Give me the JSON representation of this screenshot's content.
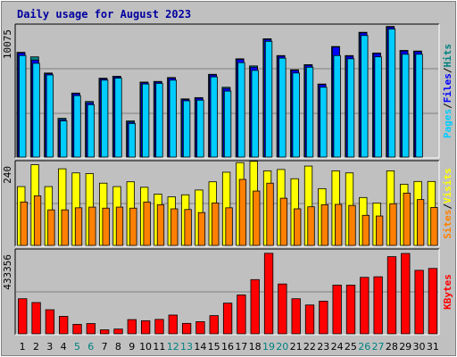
{
  "title": "Daily usage for August 2023",
  "chart_data": [
    {
      "type": "bar",
      "panel": "top",
      "categories": [
        "1",
        "2",
        "3",
        "4",
        "5",
        "6",
        "7",
        "8",
        "9",
        "10",
        "11",
        "12",
        "13",
        "14",
        "15",
        "16",
        "17",
        "18",
        "19",
        "20",
        "21",
        "22",
        "23",
        "24",
        "25",
        "26",
        "27",
        "28",
        "29",
        "30",
        "31"
      ],
      "ymax_label": "10075",
      "ylim": [
        0,
        10075
      ],
      "right_label": [
        "Pages",
        "/",
        "Files",
        "/",
        "Hits"
      ],
      "series": [
        {
          "name": "Hits",
          "color": "#008080",
          "values": [
            8100,
            7750,
            6500,
            3000,
            4950,
            4300,
            6100,
            6250,
            2800,
            5800,
            5850,
            6150,
            4500,
            4600,
            6400,
            5400,
            7600,
            7050,
            9150,
            7850,
            6750,
            7150,
            5650,
            8550,
            7850,
            9650,
            8050,
            10100,
            8250,
            8200,
            0
          ]
        },
        {
          "name": "Files",
          "color": "#0000ff",
          "values": [
            8050,
            7500,
            6450,
            2900,
            4900,
            4200,
            6050,
            6200,
            2700,
            5750,
            5800,
            6100,
            4450,
            4550,
            6350,
            5300,
            7550,
            6950,
            9100,
            7800,
            6700,
            7100,
            5600,
            8500,
            7800,
            9600,
            8000,
            10050,
            8200,
            8150,
            0
          ]
        },
        {
          "name": "Pages",
          "color": "#00ccff",
          "values": [
            7850,
            7250,
            6350,
            2800,
            4750,
            4050,
            5950,
            6100,
            2600,
            5650,
            5700,
            5950,
            4350,
            4400,
            6200,
            5100,
            7300,
            6700,
            8950,
            7650,
            6500,
            6950,
            5400,
            7850,
            7600,
            9400,
            7750,
            9900,
            7950,
            7950,
            0
          ]
        }
      ]
    },
    {
      "type": "bar",
      "panel": "middle",
      "categories": [
        "1",
        "2",
        "3",
        "4",
        "5",
        "6",
        "7",
        "8",
        "9",
        "10",
        "11",
        "12",
        "13",
        "14",
        "15",
        "16",
        "17",
        "18",
        "19",
        "20",
        "21",
        "22",
        "23",
        "24",
        "25",
        "26",
        "27",
        "28",
        "29",
        "30",
        "31"
      ],
      "ymax_label": "240",
      "ylim": [
        0,
        240
      ],
      "right_label": [
        "Sites",
        "/",
        "Visits"
      ],
      "series": [
        {
          "name": "Visits",
          "color": "#ffff00",
          "values": [
            172,
            236,
            172,
            224,
            212,
            210,
            182,
            172,
            186,
            170,
            150,
            142,
            148,
            162,
            186,
            214,
            242,
            246,
            218,
            222,
            195,
            232,
            166,
            218,
            212,
            140,
            124,
            218,
            179,
            187,
            187
          ]
        },
        {
          "name": "Sites",
          "color": "#ff8000",
          "values": [
            127,
            145,
            104,
            104,
            110,
            112,
            109,
            112,
            109,
            127,
            119,
            107,
            105,
            96,
            124,
            110,
            193,
            159,
            182,
            138,
            107,
            113,
            119,
            120,
            117,
            88,
            86,
            122,
            153,
            134,
            111
          ]
        }
      ]
    },
    {
      "type": "bar",
      "panel": "bottom",
      "categories": [
        "1",
        "2",
        "3",
        "4",
        "5",
        "6",
        "7",
        "8",
        "9",
        "10",
        "11",
        "12",
        "13",
        "14",
        "15",
        "16",
        "17",
        "18",
        "19",
        "20",
        "21",
        "22",
        "23",
        "24",
        "25",
        "26",
        "27",
        "28",
        "29",
        "30",
        "31"
      ],
      "ymax_label": "433356",
      "ylim": [
        0,
        433356
      ],
      "right_label": [
        "KBytes"
      ],
      "series": [
        {
          "name": "KBytes",
          "color": "#ff0000",
          "values": [
            185000,
            165000,
            127000,
            92000,
            50000,
            54000,
            21000,
            25000,
            75000,
            69000,
            76000,
            99000,
            55000,
            64000,
            96000,
            162000,
            205000,
            286000,
            425000,
            263000,
            185000,
            152000,
            172000,
            257000,
            257000,
            298000,
            301000,
            407000,
            424000,
            335000,
            345000
          ]
        }
      ]
    }
  ],
  "colors": {
    "background": "#c0c0c0",
    "grid": "#808080",
    "title": "#0000a0",
    "weekday": "#000000",
    "weekend": "#008080"
  },
  "weekend_days": [
    5,
    6,
    12,
    13,
    19,
    20,
    26,
    27
  ]
}
